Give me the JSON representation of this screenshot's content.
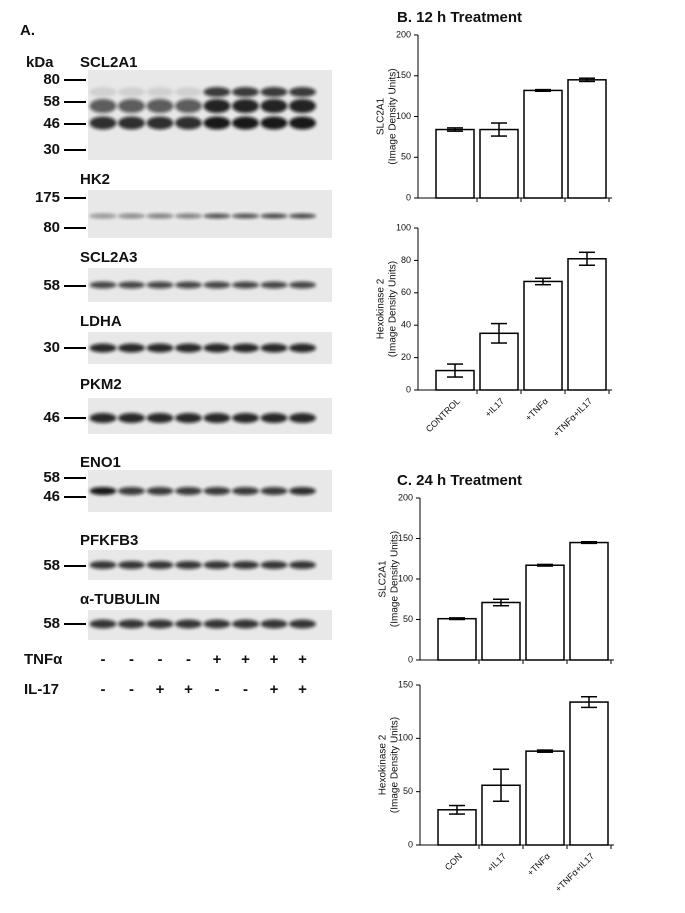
{
  "panel_a": {
    "label": "A.",
    "unit": "kDa",
    "blots": [
      {
        "name": "SCL2A1",
        "markers": [
          "80",
          "58",
          "46",
          "30"
        ]
      },
      {
        "name": "HK2",
        "markers": [
          "175",
          "80"
        ]
      },
      {
        "name": "SCL2A3",
        "markers": [
          "58"
        ]
      },
      {
        "name": "LDHA",
        "markers": [
          "30"
        ]
      },
      {
        "name": "PKM2",
        "markers": [
          "46"
        ]
      },
      {
        "name": "ENO1",
        "markers": [
          "58",
          "46"
        ]
      },
      {
        "name": "PFKFB3",
        "markers": [
          "58"
        ]
      },
      {
        "name": "α-TUBULIN",
        "markers": [
          "58"
        ]
      }
    ],
    "treatments": [
      {
        "name": "TNFα",
        "signs": [
          "-",
          "-",
          "-",
          "-",
          "+",
          "+",
          "+",
          "+"
        ]
      },
      {
        "name": "IL-17",
        "signs": [
          "-",
          "-",
          "+",
          "+",
          "-",
          "-",
          "+",
          "+"
        ]
      }
    ]
  },
  "chart_data": [
    {
      "type": "bar",
      "title": "B. 12 h Treatment",
      "y_label": [
        "SLC2A1",
        "(Image Density Units)"
      ],
      "categories": [
        null,
        null,
        null,
        null
      ],
      "values": [
        84,
        84,
        132,
        145
      ],
      "errors": [
        2,
        8,
        1,
        2
      ],
      "color": "#ffffff",
      "ylim": [
        0,
        200
      ],
      "yticks": [
        0,
        50,
        100,
        150,
        200
      ]
    },
    {
      "type": "bar",
      "y_label": [
        "Hexokinase 2",
        "(Image Density Units)"
      ],
      "categories": [
        "CONTROL",
        "+IL17",
        "+TNFα",
        "+TNFα+IL17"
      ],
      "values": [
        12,
        35,
        67,
        81
      ],
      "errors": [
        4,
        6,
        2,
        4
      ],
      "color": "#ffffff",
      "ylim": [
        0,
        100
      ],
      "yticks": [
        0,
        20,
        40,
        60,
        80,
        100
      ]
    },
    {
      "type": "bar",
      "title": "C. 24 h Treatment",
      "y_label": [
        "SLC2A1",
        "(Image Density Units)"
      ],
      "categories": [
        null,
        null,
        null,
        null
      ],
      "values": [
        51,
        71,
        117,
        145
      ],
      "errors": [
        1,
        4,
        1,
        1
      ],
      "color": "#ffffff",
      "ylim": [
        0,
        200
      ],
      "yticks": [
        0,
        50,
        100,
        150,
        200
      ]
    },
    {
      "type": "bar",
      "y_label": [
        "Hexokinase 2",
        "(Image Density Units)"
      ],
      "categories": [
        "CON",
        "+IL17",
        "+TNFα",
        "+TNFα+IL17"
      ],
      "values": [
        33,
        56,
        88,
        134
      ],
      "errors": [
        4,
        15,
        1,
        5
      ],
      "color": "#ffffff",
      "ylim": [
        0,
        150
      ],
      "yticks": [
        0,
        50,
        100,
        150
      ]
    }
  ]
}
